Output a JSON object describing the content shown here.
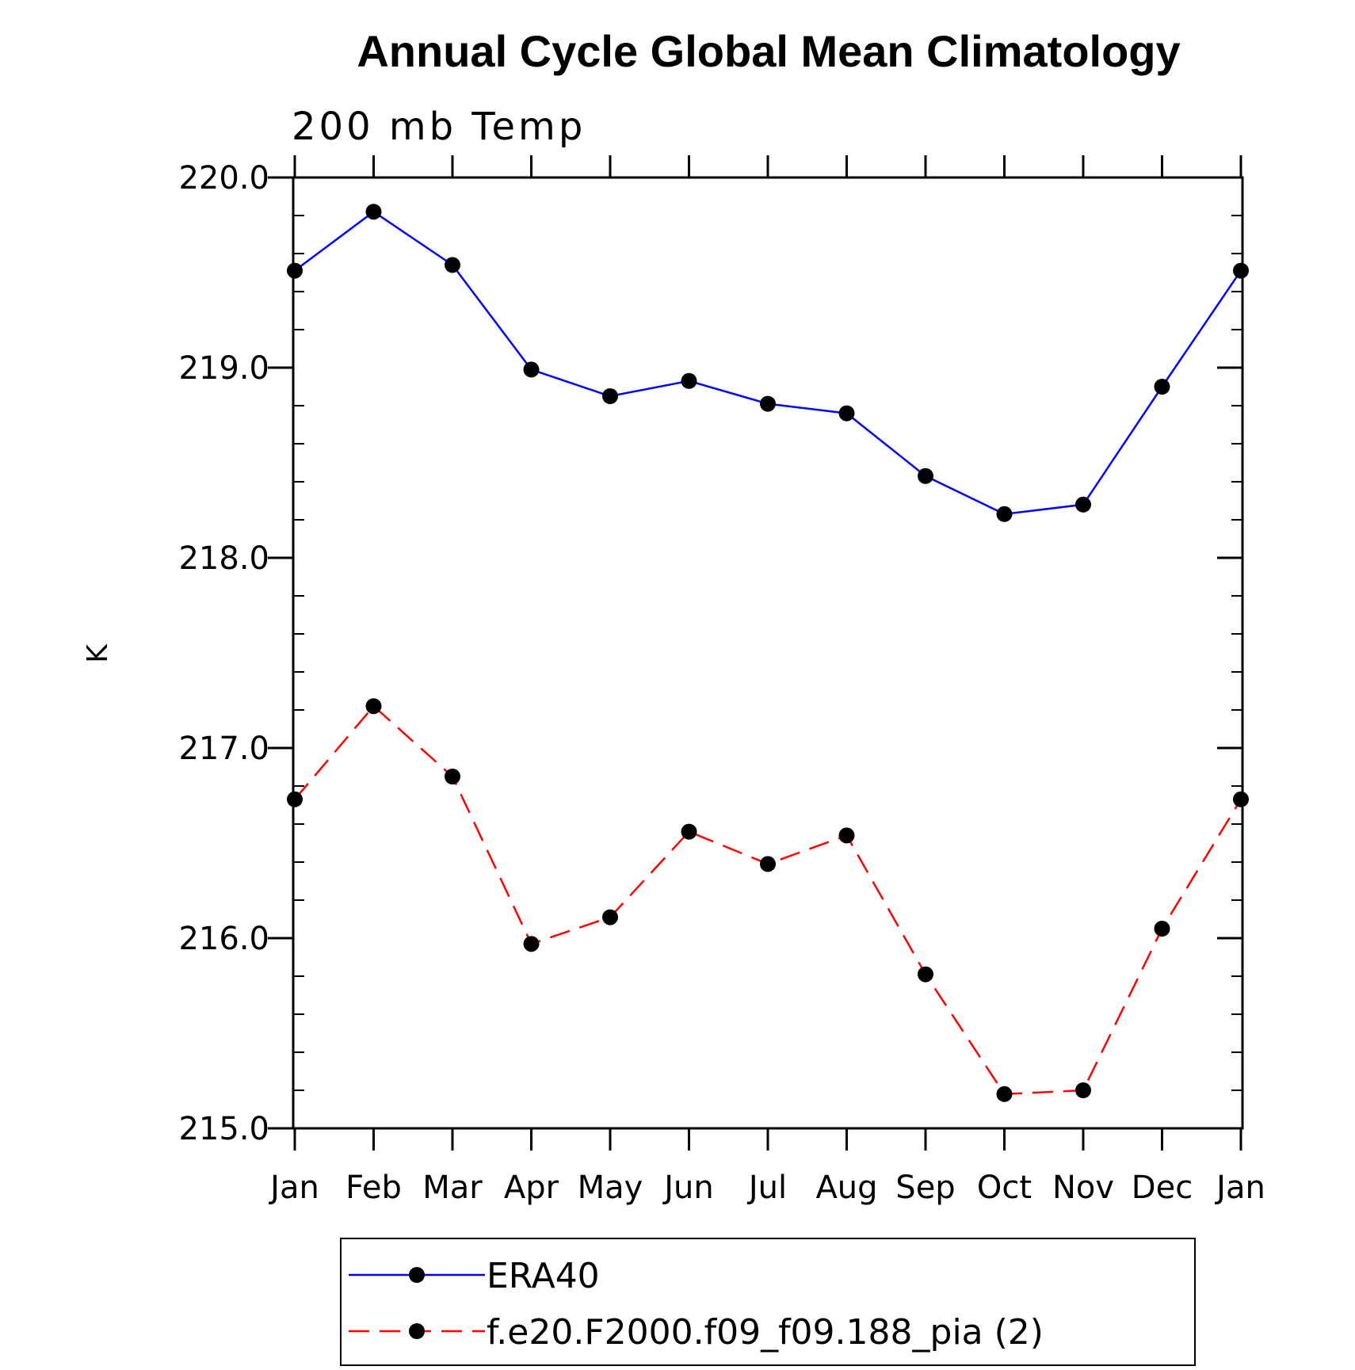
{
  "chart_data": {
    "type": "line",
    "title": "Annual Cycle Global Mean Climatology",
    "subtitle": "200 mb Temp",
    "xlabel": "",
    "ylabel": "K",
    "categories": [
      "Jan",
      "Feb",
      "Mar",
      "Apr",
      "May",
      "Jun",
      "Jul",
      "Aug",
      "Sep",
      "Oct",
      "Nov",
      "Dec",
      "Jan"
    ],
    "ylim": [
      215.0,
      220.0
    ],
    "yticks": [
      "215.0",
      "216.0",
      "217.0",
      "218.0",
      "219.0",
      "220.0"
    ],
    "grid": false,
    "legend_position": "bottom",
    "series": [
      {
        "name": "ERA40",
        "color": "#0000ff",
        "style": "solid",
        "marker": "filled-circle",
        "values": [
          219.51,
          219.82,
          219.54,
          218.99,
          218.85,
          218.93,
          218.81,
          218.76,
          218.43,
          218.23,
          218.28,
          218.9,
          219.51
        ]
      },
      {
        "name": "f.e20.F2000.f09_f09.188_pia (2)",
        "color": "#ff0000",
        "style": "dashed",
        "marker": "filled-circle",
        "values": [
          216.73,
          217.22,
          216.85,
          215.97,
          216.11,
          216.56,
          216.39,
          216.54,
          215.81,
          215.18,
          215.2,
          216.05,
          216.73
        ]
      }
    ]
  }
}
